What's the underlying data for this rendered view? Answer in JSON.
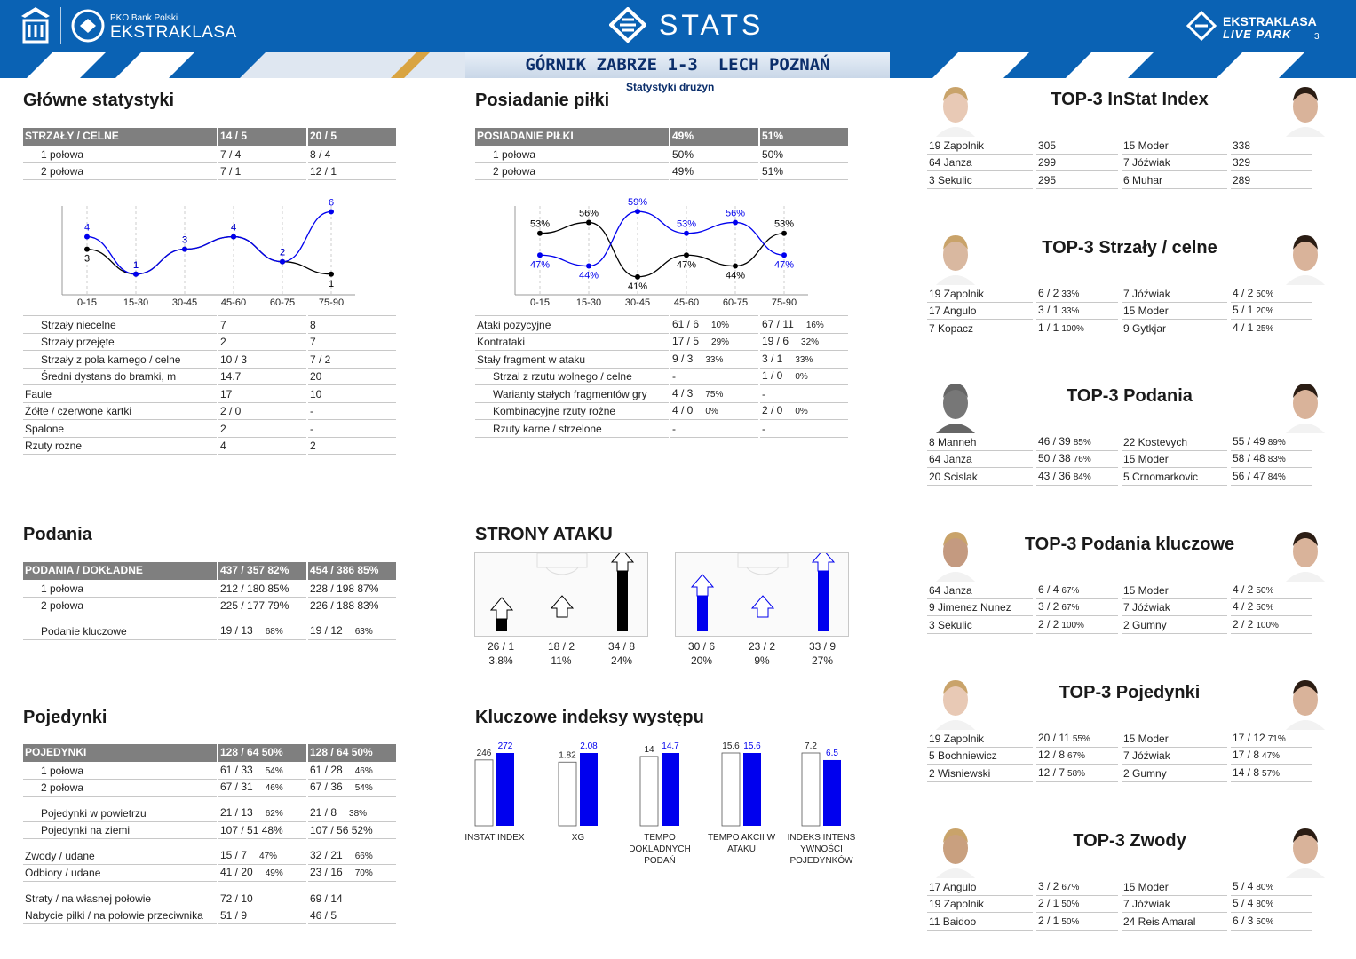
{
  "header": {
    "pko": "PKO Bank Polski",
    "ekstraklasa": "EKSTRAKLASA",
    "stats": "STATS",
    "livepark1": "EKSTRAKLASA",
    "livepark2": "LIVE PARK",
    "page": "3"
  },
  "match": {
    "score_line": "GÓRNIK ZABRZE 1-3  LECH POZNAŃ",
    "subtitle": "Statystyki drużyn"
  },
  "colors": {
    "home": "#000000",
    "away": "#0000ee",
    "header": "#0a62b4"
  },
  "main": {
    "title": "Główne statystyki",
    "header": [
      "STRZAŁY / CELNE",
      "14 / 5",
      "20 / 5"
    ],
    "halves": [
      [
        "1 połowa",
        "7 / 4",
        "8 / 4"
      ],
      [
        "2 połowa",
        "7 / 1",
        "12 / 1"
      ]
    ],
    "rows": [
      [
        "Strzały niecelne",
        "7",
        "8",
        true
      ],
      [
        "Strzały przejęte",
        "2",
        "7",
        true
      ],
      [
        "Strzały z pola karnego / celne",
        "10 / 3",
        "7 / 2",
        true
      ],
      [
        "Średni dystans do bramki, m",
        "14.7",
        "20",
        true
      ],
      [
        "Faule",
        "17",
        "10",
        false
      ],
      [
        "Żółte / czerwone kartki",
        "2 / 0",
        "-",
        false
      ],
      [
        "Spalone",
        "2",
        "-",
        false
      ],
      [
        "Rzuty rożne",
        "4",
        "2",
        false
      ]
    ]
  },
  "possession": {
    "title": "Posiadanie piłki",
    "header": [
      "POSIADANIE PIŁKI",
      "49%",
      "51%"
    ],
    "halves": [
      [
        "1 połowa",
        "50%",
        "50%"
      ],
      [
        "2 połowa",
        "49%",
        "51%"
      ]
    ],
    "rows": [
      [
        "Ataki pozycyjne",
        "61 / 6",
        "10%",
        "67 / 11",
        "16%",
        false
      ],
      [
        "Kontrataki",
        "17 / 5",
        "29%",
        "19 / 6",
        "32%",
        false
      ],
      [
        "Stały fragment w ataku",
        "9 / 3",
        "33%",
        "3 / 1",
        "33%",
        false
      ],
      [
        "Strzal z rzutu wolnego / celne",
        "-",
        "",
        "1 / 0",
        "0%",
        true
      ],
      [
        "Warianty stałych fragmentów gry",
        "4 / 3",
        "75%",
        "-",
        "",
        true
      ],
      [
        "Kombinacyjne rzuty rożne",
        "4 / 0",
        "0%",
        "2 / 0",
        "0%",
        true
      ],
      [
        "Rzuty karne /  strzelone",
        "-",
        "",
        "-",
        "",
        true
      ]
    ]
  },
  "chart_data": [
    {
      "type": "line",
      "categories": [
        "0-15",
        "15-30",
        "30-45",
        "45-60",
        "60-75",
        "75-90"
      ],
      "series": [
        {
          "values": [
            3,
            1,
            3,
            4,
            2,
            1
          ]
        },
        {
          "values": [
            4,
            1,
            3,
            4,
            2,
            6
          ]
        }
      ],
      "labels": [
        "4",
        "3",
        "1",
        "3",
        "4",
        "2",
        "6",
        "1"
      ]
    },
    {
      "type": "line",
      "categories": [
        "0-15",
        "15-30",
        "30-45",
        "45-60",
        "60-75",
        "75-90"
      ],
      "series": [
        {
          "values": [
            53,
            56,
            41,
            47,
            44,
            53
          ]
        },
        {
          "values": [
            47,
            44,
            59,
            53,
            56,
            47
          ]
        }
      ],
      "unit": "%"
    },
    {
      "type": "bar",
      "categories": [
        "INSTAT INDEX",
        "XG",
        "TEMPO DOKLADNYCH PODAŃ",
        "TEMPO AKCII W ATAKU",
        "INDEKS INTENS YWNOŚCI POJEDYNKÓW"
      ],
      "series": [
        {
          "values": [
            246,
            1.82,
            14,
            15.6,
            7.2
          ]
        },
        {
          "values": [
            272,
            2.08,
            14.7,
            15.6,
            6.5
          ]
        }
      ]
    }
  ],
  "passes": {
    "title": "Podania",
    "header": [
      "PODANIA / DOKŁADNE",
      "437 / 357 82%",
      "454 / 386 85%"
    ],
    "rows": [
      [
        "1 połowa",
        "212 / 180 85%",
        "228 / 198 87%",
        true,
        "",
        ""
      ],
      [
        "2 połowa",
        "225 / 177 79%",
        "226 / 188 83%",
        true,
        "",
        ""
      ],
      [
        "gap"
      ],
      [
        "Podanie kluczowe",
        "19 / 13",
        "19 / 12",
        true,
        "68%",
        "63%"
      ]
    ]
  },
  "duels": {
    "title": "Pojedynki",
    "header": [
      "POJEDYNKI",
      "128 / 64 50%",
      "128 / 64 50%"
    ],
    "rows": [
      [
        "1 połowa",
        "61 / 33",
        "61 / 28",
        true,
        "54%",
        "46%"
      ],
      [
        "2 połowa",
        "67 / 31",
        "67 / 36",
        true,
        "46%",
        "54%"
      ],
      [
        "gap"
      ],
      [
        "Pojedynki w powietrzu",
        "21 / 13",
        "21 / 8",
        true,
        "62%",
        "38%"
      ],
      [
        "Pojedynki na ziemi",
        "107 / 51 48%",
        "107 / 56 52%",
        true,
        "",
        ""
      ],
      [
        "gap"
      ],
      [
        "Zwody / udane",
        "15 / 7",
        "32 / 21",
        false,
        "47%",
        "66%"
      ],
      [
        "Odbiory / udane",
        "41 / 20",
        "23 / 16",
        false,
        "49%",
        "70%"
      ],
      [
        "gap"
      ],
      [
        "Straty / na własnej połowie",
        "72 / 10",
        "69 / 14",
        false,
        "",
        ""
      ],
      [
        "Nabycie piłki / na połowie przeciwnika",
        "51 / 9",
        "46 / 5",
        false,
        "",
        ""
      ]
    ]
  },
  "attack": {
    "title": "STRONY ATAKU",
    "home": [
      {
        "v": "26 / 1",
        "p": "3.8%",
        "h": 0.17
      },
      {
        "v": "18 / 2",
        "p": "11%",
        "h": 0
      },
      {
        "v": "34 / 8",
        "p": "24%",
        "h": 0.85
      }
    ],
    "away": [
      {
        "v": "30 / 6",
        "p": "20%",
        "h": 0.5
      },
      {
        "v": "23 / 2",
        "p": "9%",
        "h": 0
      },
      {
        "v": "33 / 9",
        "p": "27%",
        "h": 0.85
      }
    ]
  },
  "kpi": {
    "title": "Kluczowe indeksy występu",
    "items": [
      {
        "cap": "INSTAT INDEX",
        "a": "246",
        "b": "272"
      },
      {
        "cap": "XG",
        "a": "1.82",
        "b": "2.08"
      },
      {
        "cap": "TEMPO DOKLADNYCH PODAŃ",
        "a": "14",
        "b": "14.7"
      },
      {
        "cap": "TEMPO AKCII W ATAKU",
        "a": "15.6",
        "b": "15.6"
      },
      {
        "cap": "INDEKS INTENS YWNOŚCI POJEDYNKÓW",
        "a": "7.2",
        "b": "6.5"
      }
    ]
  },
  "top": [
    {
      "title": "TOP-3 InStat Index",
      "rows": [
        [
          "19 Zapolnik",
          "305",
          "",
          "15 Moder",
          "338",
          ""
        ],
        [
          "64 Janza",
          "299",
          "",
          "7  Jóźwiak",
          "329",
          ""
        ],
        [
          "3  Sekulic",
          "295",
          "",
          "6  Muhar",
          "289",
          ""
        ]
      ]
    },
    {
      "title": "TOP-3 Strzały / celne",
      "rows": [
        [
          "19 Zapolnik",
          "6 / 2",
          "33%",
          "7  Jóźwiak",
          "4 / 2",
          "50%"
        ],
        [
          "17 Angulo",
          "3 / 1",
          "33%",
          "15 Moder",
          "5 / 1",
          "20%"
        ],
        [
          "7  Kopacz",
          "1 / 1",
          "100%",
          "9  Gytkjar",
          "4 / 1",
          "25%"
        ]
      ]
    },
    {
      "title": "TOP-3 Podania",
      "rows": [
        [
          "8  Manneh",
          "46 / 39",
          "85%",
          "22 Kostevych",
          "55 / 49",
          "89%"
        ],
        [
          "64 Janza",
          "50 / 38",
          "76%",
          "15 Moder",
          "58 / 48",
          "83%"
        ],
        [
          "20 Scislak",
          "43 / 36",
          "84%",
          "5  Crnomarkovic",
          "56 / 47",
          "84%"
        ]
      ]
    },
    {
      "title": "TOP-3 Podania kluczowe",
      "rows": [
        [
          "64 Janza",
          "6 / 4",
          "67%",
          "15 Moder",
          "4 / 2",
          "50%"
        ],
        [
          "9  Jimenez Nunez",
          "3 / 2",
          "67%",
          "7  Jóźwiak",
          "4 / 2",
          "50%"
        ],
        [
          "3  Sekulic",
          "2 / 2",
          "100%",
          "2  Gumny",
          "2 / 2",
          "100%"
        ]
      ]
    },
    {
      "title": "TOP-3 Pojedynki",
      "rows": [
        [
          "19 Zapolnik",
          "20 / 11",
          "55%",
          "15 Moder",
          "17 / 12",
          "71%"
        ],
        [
          "5  Bochniewicz",
          "12 / 8",
          "67%",
          "7  Jóźwiak",
          "17 / 8",
          "47%"
        ],
        [
          "2  Wisniewski",
          "12 / 7",
          "58%",
          "2  Gumny",
          "14 / 8",
          "57%"
        ]
      ]
    },
    {
      "title": "TOP-3 Zwody",
      "rows": [
        [
          "17 Angulo",
          "3 / 2",
          "67%",
          "15 Moder",
          "5 / 4",
          "80%"
        ],
        [
          "19 Zapolnik",
          "2 / 1",
          "50%",
          "7  Jóźwiak",
          "5 / 4",
          "80%"
        ],
        [
          "11 Baidoo",
          "2 / 1",
          "50%",
          "24 Reis Amaral",
          "6 / 3",
          "50%"
        ]
      ]
    }
  ]
}
